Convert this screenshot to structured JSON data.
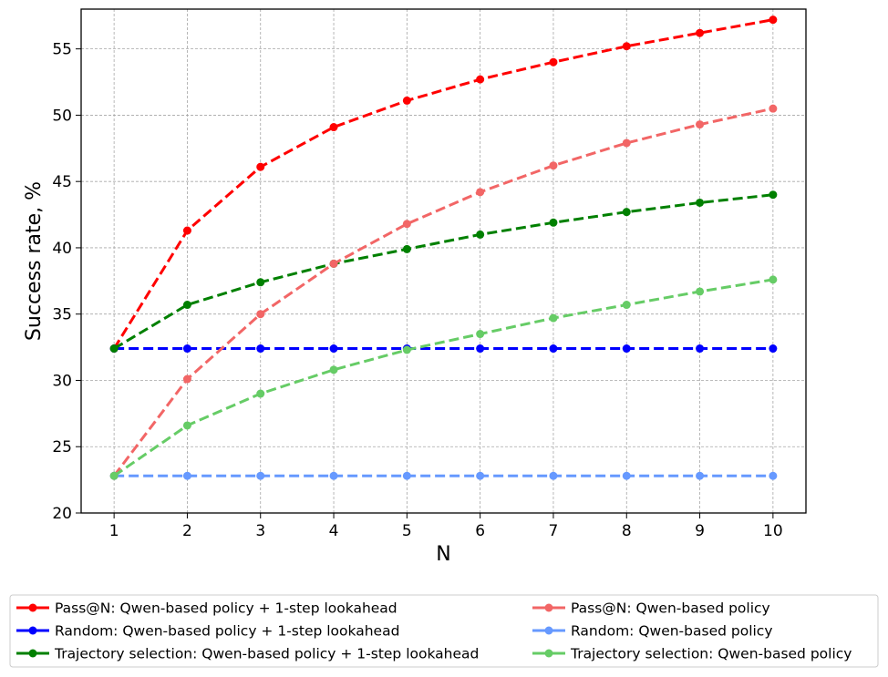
{
  "chart_data": {
    "type": "line",
    "xlabel": "N",
    "ylabel": "Success rate, %",
    "x": [
      1,
      2,
      3,
      4,
      5,
      6,
      7,
      8,
      9,
      10
    ],
    "xlim": [
      0.55,
      10.45
    ],
    "ylim": [
      20,
      58
    ],
    "xticks": [
      "1",
      "2",
      "3",
      "4",
      "5",
      "6",
      "7",
      "8",
      "9",
      "10"
    ],
    "yticks": [
      "20",
      "25",
      "30",
      "35",
      "40",
      "45",
      "50",
      "55"
    ],
    "grid": true,
    "legend_position": "below plot, two columns",
    "series": [
      {
        "name": "Pass@N: Qwen-based policy + 1-step lookahead",
        "color": "#ff0000",
        "values": [
          32.4,
          41.3,
          46.1,
          49.1,
          51.1,
          52.7,
          54.0,
          55.2,
          56.2,
          57.2
        ]
      },
      {
        "name": "Random: Qwen-based policy + 1-step lookahead",
        "color": "#0000ff",
        "values": [
          32.4,
          32.4,
          32.4,
          32.4,
          32.4,
          32.4,
          32.4,
          32.4,
          32.4,
          32.4
        ]
      },
      {
        "name": "Trajectory selection: Qwen-based policy + 1-step lookahead",
        "color": "#008000",
        "values": [
          32.4,
          35.7,
          37.4,
          38.8,
          39.9,
          41.0,
          41.9,
          42.7,
          43.4,
          44.0
        ]
      },
      {
        "name": "Pass@N: Qwen-based policy",
        "color": "#f26666",
        "values": [
          22.8,
          30.1,
          35.0,
          38.8,
          41.8,
          44.2,
          46.2,
          47.9,
          49.3,
          50.5
        ]
      },
      {
        "name": "Random: Qwen-based policy",
        "color": "#6699ff",
        "values": [
          22.8,
          22.8,
          22.8,
          22.8,
          22.8,
          22.8,
          22.8,
          22.8,
          22.8,
          22.8
        ]
      },
      {
        "name": "Trajectory selection: Qwen-based policy",
        "color": "#66cc66",
        "values": [
          22.8,
          26.6,
          29.0,
          30.8,
          32.3,
          33.5,
          34.7,
          35.7,
          36.7,
          37.6
        ]
      }
    ]
  }
}
